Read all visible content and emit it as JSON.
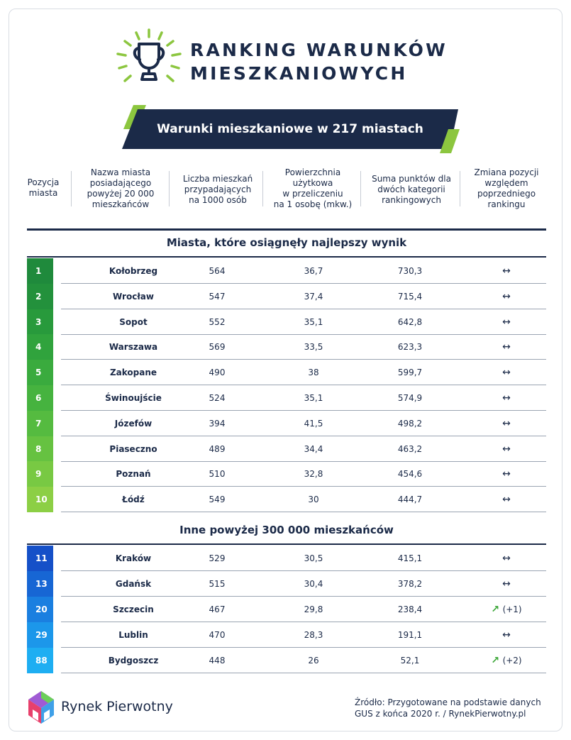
{
  "header": {
    "title_line1": "RANKING WARUNKÓW",
    "title_line2": "MIESZKANIOWYCH",
    "banner": "Warunki mieszkaniowe w 217 miastach"
  },
  "columns": [
    "Pozycja miasta",
    "Nazwa miasta posiadającego powyżej 20 000 mieszkańców",
    "Liczba mieszkań przypadających na 1000 osób",
    "Powierzchnia użytkowa w przeliczeniu na 1 osobę (mkw.)",
    "Suma punktów dla dwóch kategorii rankingowych",
    "Zmiana pozycji względem poprzedniego rankingu"
  ],
  "columns_lines": [
    [
      "Pozycja",
      "miasta"
    ],
    [
      "Nazwa miasta",
      "posiadającego",
      "powyżej 20 000",
      "mieszkańców"
    ],
    [
      "Liczba mieszkań",
      "przypadających",
      "na 1000 osób"
    ],
    [
      "Powierzchnia",
      "użytkowa",
      "w przeliczeniu",
      "na 1 osobę (mkw.)"
    ],
    [
      "Suma punktów dla",
      "dwóch kategorii",
      "rankingowych"
    ],
    [
      "Zmiana pozycji",
      "względem",
      "poprzedniego",
      "rankingu"
    ]
  ],
  "section1": {
    "title": "Miasta, które osiągnęły najlepszy wynik",
    "rows": [
      {
        "rank": "1",
        "city": "Kołobrzeg",
        "pop": "564",
        "area": "36,7",
        "sum": "730,3",
        "change": "↔",
        "color": "#1f8a3c"
      },
      {
        "rank": "2",
        "city": "Wrocław",
        "pop": "547",
        "area": "37,4",
        "sum": "715,4",
        "change": "↔",
        "color": "#23913c"
      },
      {
        "rank": "3",
        "city": "Sopot",
        "pop": "552",
        "area": "35,1",
        "sum": "642,8",
        "change": "↔",
        "color": "#289a3c"
      },
      {
        "rank": "4",
        "city": "Warszawa",
        "pop": "569",
        "area": "33,5",
        "sum": "623,3",
        "change": "↔",
        "color": "#30a33d"
      },
      {
        "rank": "5",
        "city": "Zakopane",
        "pop": "490",
        "area": "38",
        "sum": "599,7",
        "change": "↔",
        "color": "#3aab3e"
      },
      {
        "rank": "6",
        "city": "Świnoujście",
        "pop": "524",
        "area": "35,1",
        "sum": "574,9",
        "change": "↔",
        "color": "#46b33f"
      },
      {
        "rank": "7",
        "city": "Józefów",
        "pop": "394",
        "area": "41,5",
        "sum": "498,2",
        "change": "↔",
        "color": "#55bb40"
      },
      {
        "rank": "8",
        "city": "Piaseczno",
        "pop": "489",
        "area": "34,4",
        "sum": "463,2",
        "change": "↔",
        "color": "#66c241"
      },
      {
        "rank": "9",
        "city": "Poznań",
        "pop": "510",
        "area": "32,8",
        "sum": "454,6",
        "change": "↔",
        "color": "#78c943"
      },
      {
        "rank": "10",
        "city": "Łódź",
        "pop": "549",
        "area": "30",
        "sum": "444,7",
        "change": "↔",
        "color": "#8ccf45"
      }
    ]
  },
  "section2": {
    "title": "Inne powyżej 300 000 mieszkańców",
    "rows": [
      {
        "rank": "11",
        "city": "Kraków",
        "pop": "529",
        "area": "30,5",
        "sum": "415,1",
        "change": "↔",
        "color": "#1550c8"
      },
      {
        "rank": "13",
        "city": "Gdańsk",
        "pop": "515",
        "area": "30,4",
        "sum": "378,2",
        "change": "↔",
        "color": "#1766d4"
      },
      {
        "rank": "20",
        "city": "Szczecin",
        "pop": "467",
        "area": "29,8",
        "sum": "238,4",
        "change": "↗",
        "change_note": "(+1)",
        "color": "#1a7fe0"
      },
      {
        "rank": "29",
        "city": "Lublin",
        "pop": "470",
        "area": "28,3",
        "sum": "191,1",
        "change": "↔",
        "color": "#1c97ea"
      },
      {
        "rank": "88",
        "city": "Bydgoszcz",
        "pop": "448",
        "area": "26",
        "sum": "52,1",
        "change": "↗",
        "change_note": "(+2)",
        "color": "#1eaef2"
      }
    ]
  },
  "footer": {
    "brand": "Rynek Pierwotny",
    "source_line1": "Źródło: Przygotowane na podstawie danych",
    "source_line2": "GUS z końca 2020 r. / RynekPierwotny.pl"
  },
  "colors": {
    "navy": "#1b2a48",
    "accent_green": "#8cc63f"
  }
}
